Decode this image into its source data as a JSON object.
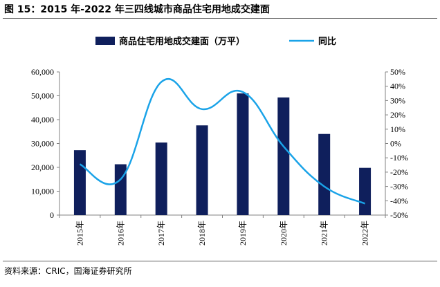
{
  "title": "图 15：2015 年-2022 年三四线城市商品住宅用地成交建面",
  "source": "资料来源：CRIC，国海证券研究所",
  "chart_data": {
    "type": "bar+line",
    "categories": [
      "2015年",
      "2016年",
      "2017年",
      "2018年",
      "2019年",
      "2020年",
      "2021年",
      "2022年"
    ],
    "series": [
      {
        "name": "商品住宅用地成交建面（万平）",
        "type": "bar",
        "axis": "left",
        "color": "#0f1f5c",
        "values": [
          27200,
          21300,
          30400,
          37600,
          51000,
          49300,
          34000,
          19800
        ]
      },
      {
        "name": "同比",
        "type": "line",
        "axis": "right",
        "color": "#1aa3e8",
        "values": [
          -14.5,
          -25,
          43,
          24,
          36,
          -2,
          -30,
          -42
        ],
        "unit": "%"
      }
    ],
    "left_axis": {
      "range": [
        0,
        60000
      ],
      "ticks": [
        0,
        10000,
        20000,
        30000,
        40000,
        50000,
        60000
      ],
      "tick_labels": [
        "0",
        "10,000",
        "20,000",
        "30,000",
        "40,000",
        "50,000",
        "60,000"
      ]
    },
    "right_axis": {
      "range": [
        -50,
        50
      ],
      "ticks": [
        -50,
        -40,
        -30,
        -20,
        -10,
        0,
        10,
        20,
        30,
        40,
        50
      ],
      "tick_labels": [
        "-50%",
        "-40%",
        "-30%",
        "-20%",
        "-10%",
        "0%",
        "10%",
        "20%",
        "30%",
        "40%",
        "50%"
      ]
    },
    "legend": [
      "商品住宅用地成交建面（万平）",
      "同比"
    ],
    "legend_position": "top",
    "grid": false
  }
}
